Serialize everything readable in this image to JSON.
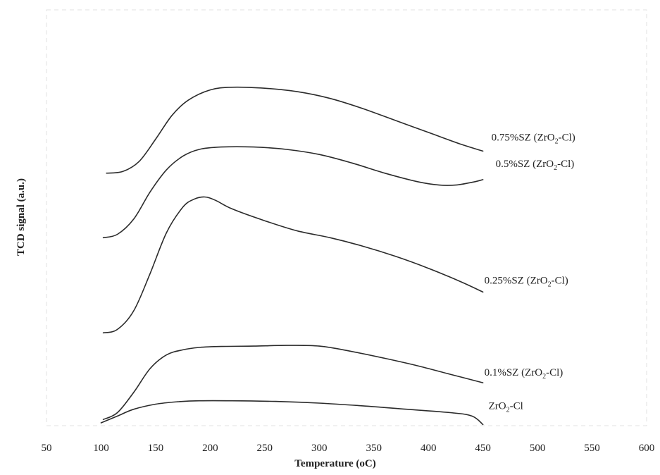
{
  "chart_data": {
    "type": "line",
    "xlabel": "Temperature (oC)",
    "ylabel": "TCD signal (a.u.)",
    "xlim": [
      50,
      600
    ],
    "xticks": [
      50,
      100,
      150,
      200,
      250,
      300,
      350,
      400,
      450,
      500,
      550,
      600
    ],
    "grid": false,
    "legend": "labels at right end of each curve",
    "series": [
      {
        "label_main": "0.75%SZ (ZrO",
        "label_sub": "2",
        "label_tail": "-Cl)",
        "x": [
          105,
          120,
          135,
          150,
          165,
          180,
          200,
          220,
          250,
          280,
          310,
          340,
          370,
          400,
          430,
          450
        ],
        "y": [
          0.735,
          0.74,
          0.77,
          0.835,
          0.905,
          0.95,
          0.98,
          0.988,
          0.985,
          0.975,
          0.955,
          0.925,
          0.89,
          0.855,
          0.82,
          0.8
        ]
      },
      {
        "label_main": "0.5%SZ (ZrO",
        "label_sub": "2",
        "label_tail": "-Cl)",
        "x": [
          102,
          115,
          130,
          145,
          160,
          175,
          190,
          210,
          240,
          270,
          300,
          330,
          360,
          390,
          410,
          425,
          440,
          450
        ],
        "y": [
          0.545,
          0.555,
          0.6,
          0.68,
          0.745,
          0.785,
          0.805,
          0.812,
          0.812,
          0.805,
          0.79,
          0.765,
          0.735,
          0.71,
          0.7,
          0.7,
          0.708,
          0.716
        ]
      },
      {
        "label_main": "0.25%SZ (ZrO",
        "label_sub": "2",
        "label_tail": "-Cl)",
        "x": [
          102,
          115,
          130,
          145,
          160,
          175,
          185,
          195,
          205,
          220,
          250,
          280,
          310,
          340,
          370,
          400,
          430,
          450
        ],
        "y": [
          0.265,
          0.275,
          0.33,
          0.44,
          0.56,
          0.635,
          0.658,
          0.665,
          0.655,
          0.63,
          0.595,
          0.565,
          0.545,
          0.52,
          0.49,
          0.455,
          0.415,
          0.385
        ]
      },
      {
        "label_main": "0.1%SZ (ZrO",
        "label_sub": "2",
        "label_tail": "-Cl)",
        "x": [
          102,
          115,
          130,
          145,
          160,
          175,
          190,
          210,
          240,
          270,
          300,
          330,
          360,
          390,
          420,
          450
        ],
        "y": [
          0.01,
          0.03,
          0.09,
          0.16,
          0.2,
          0.215,
          0.222,
          0.225,
          0.226,
          0.228,
          0.226,
          0.21,
          0.19,
          0.168,
          0.143,
          0.118
        ]
      },
      {
        "label_main": "ZrO",
        "label_sub": "2",
        "label_tail": "-Cl",
        "x": [
          100,
          115,
          130,
          150,
          170,
          190,
          220,
          260,
          300,
          340,
          380,
          420,
          440,
          450
        ],
        "y": [
          0.0,
          0.02,
          0.04,
          0.055,
          0.062,
          0.065,
          0.065,
          0.063,
          0.058,
          0.05,
          0.04,
          0.03,
          0.02,
          -0.005
        ]
      }
    ]
  }
}
